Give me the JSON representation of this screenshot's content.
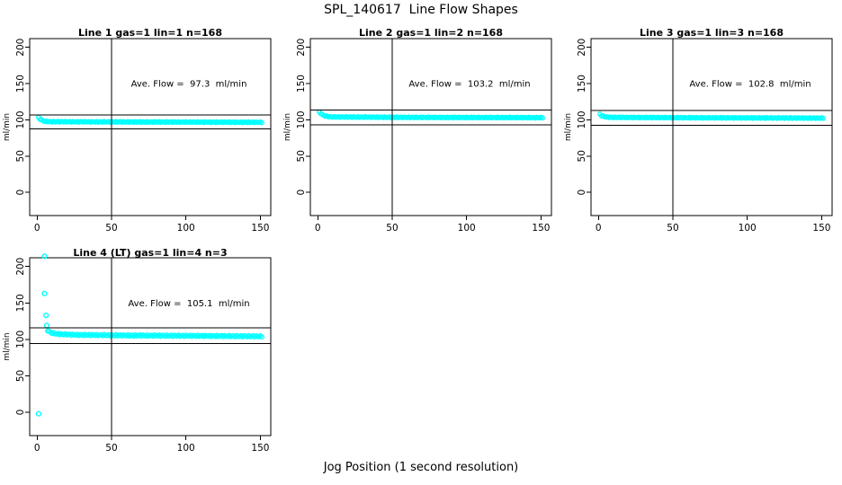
{
  "figure": {
    "title": "SPL_140617  Line Flow Shapes",
    "x_axis_label": "Jog Position (1 second resolution)"
  },
  "chart_data": {
    "type": "scatter",
    "title": "SPL_140617  Line Flow Shapes",
    "xlabel": "Jog Position (1 second resolution)",
    "ylabel": "ml/min",
    "x_ticks": [
      0,
      50,
      100,
      150
    ],
    "y_ticks": [
      0,
      50,
      100,
      150,
      200
    ],
    "xlim": [
      -5,
      157
    ],
    "ylim": [
      -32,
      212
    ],
    "grid": "off",
    "marker": "open-circle",
    "point_color": "#00ffff",
    "axis_color": "#000000",
    "annotation_pos": {
      "x": 102,
      "y": 150
    },
    "panels": [
      {
        "title": "Line 1 gas=1 lin=1 n=168",
        "ave_flow": 97.3,
        "ave_flow_label": "Ave. Flow =  97.3  ml/min",
        "n": 168,
        "h_ref_lines": [
          107.0,
          87.6
        ],
        "v_ref_line": 50,
        "grid": {
          "row": 0,
          "col": 0
        },
        "series": {
          "x_start": 1,
          "x_end": 151,
          "x_step": 1,
          "wobble": 0.6,
          "key_points": [
            [
              1,
              103
            ],
            [
              2,
              101
            ],
            [
              3,
              99.5
            ],
            [
              5,
              98
            ],
            [
              10,
              97.4
            ],
            [
              60,
              97.1
            ],
            [
              151,
              96.6
            ]
          ]
        },
        "extra_points": []
      },
      {
        "title": "Line 2 gas=1 lin=2 n=168",
        "ave_flow": 103.2,
        "ave_flow_label": "Ave. Flow =  103.2  ml/min",
        "n": 168,
        "h_ref_lines": [
          113.5,
          92.9
        ],
        "v_ref_line": 50,
        "grid": {
          "row": 0,
          "col": 1
        },
        "series": {
          "x_start": 1,
          "x_end": 151,
          "x_step": 1,
          "wobble": 0.6,
          "key_points": [
            [
              1,
              110.5
            ],
            [
              2,
              109
            ],
            [
              3,
              107
            ],
            [
              5,
              105.2
            ],
            [
              9,
              104
            ],
            [
              60,
              103.4
            ],
            [
              151,
              103
            ]
          ]
        },
        "extra_points": []
      },
      {
        "title": "Line 3 gas=1 lin=3 n=168",
        "ave_flow": 102.8,
        "ave_flow_label": "Ave. Flow =  102.8  ml/min",
        "n": 168,
        "h_ref_lines": [
          113.1,
          92.5
        ],
        "v_ref_line": 50,
        "grid": {
          "row": 0,
          "col": 2
        },
        "series": {
          "x_start": 1,
          "x_end": 151,
          "x_step": 1,
          "wobble": 0.6,
          "key_points": [
            [
              1,
              107.5
            ],
            [
              2,
              106
            ],
            [
              4,
              104.3
            ],
            [
              8,
              103.4
            ],
            [
              60,
              102.9
            ],
            [
              151,
              102.4
            ]
          ]
        },
        "extra_points": []
      },
      {
        "title": "Line 4 (LT) gas=1 lin=4 n=3",
        "ave_flow": 105.1,
        "ave_flow_label": "Ave. Flow =  105.1  ml/min",
        "n": 3,
        "h_ref_lines": [
          115.6,
          94.6
        ],
        "v_ref_line": 50,
        "grid": {
          "row": 1,
          "col": 0
        },
        "series": {
          "x_start": 7,
          "x_end": 151,
          "x_step": 1,
          "wobble": 1.0,
          "key_points": [
            [
              7,
              112.5
            ],
            [
              9,
              109.5
            ],
            [
              13,
              107.5
            ],
            [
              25,
              106.3
            ],
            [
              60,
              105.4
            ],
            [
              100,
              105
            ],
            [
              151,
              104.2
            ]
          ]
        },
        "extra_points": [
          [
            1,
            -2
          ],
          [
            5,
            214
          ],
          [
            5,
            163
          ],
          [
            6,
            133
          ],
          [
            6.5,
            119
          ]
        ]
      }
    ]
  }
}
